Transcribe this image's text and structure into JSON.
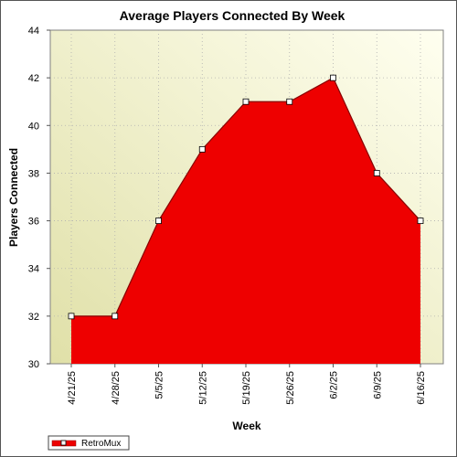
{
  "chart_data": {
    "type": "area",
    "title": "Average Players Connected By Week",
    "xlabel": "Week",
    "ylabel": "Players Connected",
    "categories": [
      "4/21/25",
      "4/28/25",
      "5/5/25",
      "5/12/25",
      "5/19/25",
      "5/26/25",
      "6/2/25",
      "6/9/25",
      "6/16/25"
    ],
    "series": [
      {
        "name": "RetroMux",
        "values": [
          32,
          32,
          36,
          39,
          41,
          41,
          42,
          38,
          36
        ]
      }
    ],
    "ylim": [
      30,
      44
    ],
    "yticks": [
      30,
      32,
      34,
      36,
      38,
      40,
      42,
      44
    ],
    "grid": true,
    "legend_position": "bottom-left",
    "colors": {
      "fill": "#ee0000",
      "line": "#880000",
      "marker_fill": "#ffffff",
      "marker_stroke": "#000000",
      "bg_gradient_start": "#e0e0a8",
      "bg_gradient_end": "#fffff0",
      "grid": "#b0b0b0"
    }
  }
}
